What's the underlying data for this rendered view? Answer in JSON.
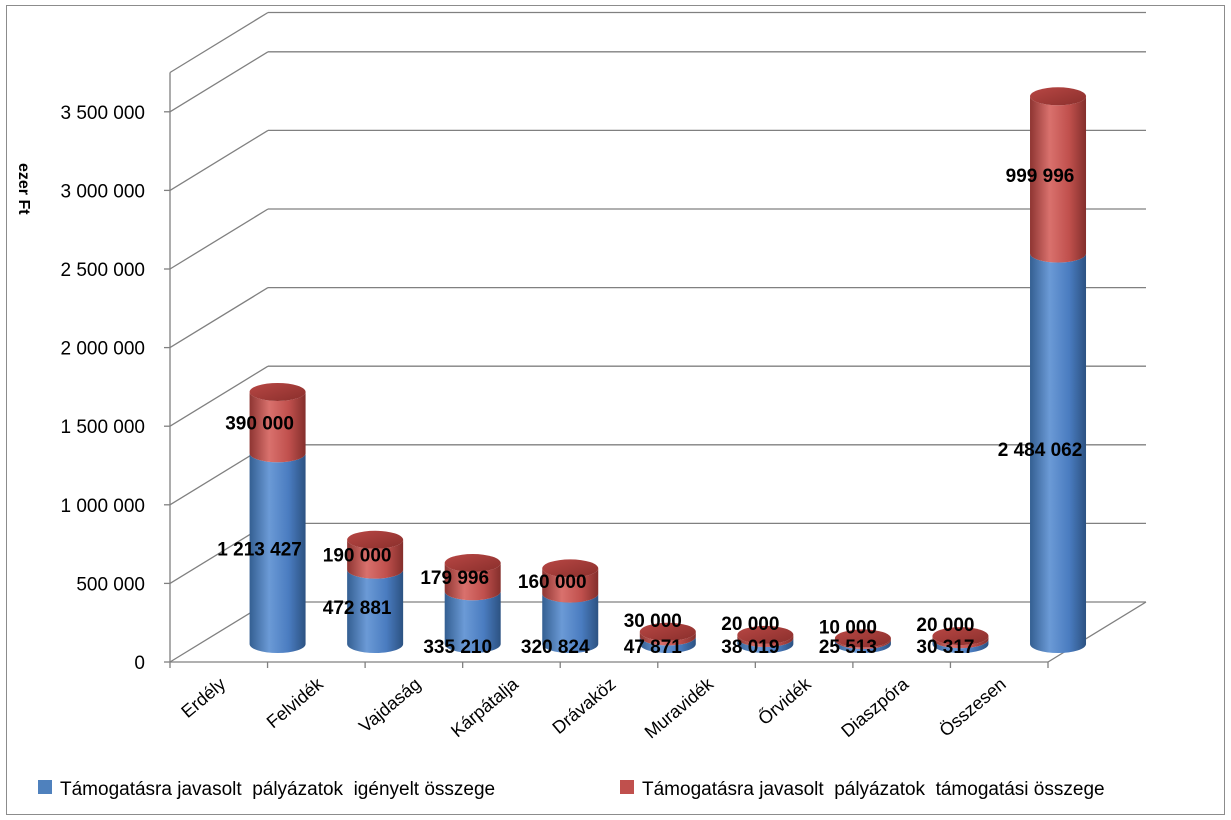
{
  "chart_data": {
    "type": "bar",
    "stacked": true,
    "style": "3d-cylinder",
    "ylabel": "ezer Ft",
    "ylim": [
      0,
      3500000
    ],
    "ytick_labels": [
      "0",
      "500 000",
      "1 000 000",
      "1 500 000",
      "2 000 000",
      "2 500 000",
      "3 000 000",
      "3 500 000"
    ],
    "categories": [
      "Erdély",
      "Felvidék",
      "Vajdaság",
      "Kárpátalja",
      "Drávaköz",
      "Muravidék",
      "Őrvidék",
      "Diaszpóra",
      "Összesen"
    ],
    "series": [
      {
        "name": "Támogatásra javasolt  pályázatok  igényelt összege",
        "color": "#4f81bd",
        "values": [
          1213427,
          472881,
          335210,
          320824,
          47871,
          38019,
          25513,
          30317,
          2484062
        ],
        "labels": [
          "1 213 427",
          "472 881",
          "335 210",
          "320 824",
          "47 871",
          "38 019",
          "25 513",
          "30 317",
          "2 484 062"
        ]
      },
      {
        "name": "Támogatásra javasolt  pályázatok  támogatási összege",
        "color": "#c0504d",
        "values": [
          390000,
          190000,
          179996,
          160000,
          30000,
          20000,
          10000,
          20000,
          999996
        ],
        "labels": [
          "390 000",
          "190 000",
          "179 996",
          "160 000",
          "30 000",
          "20 000",
          "10 000",
          "20 000",
          "999 996"
        ]
      }
    ],
    "grid": true,
    "legend_position": "bottom"
  }
}
